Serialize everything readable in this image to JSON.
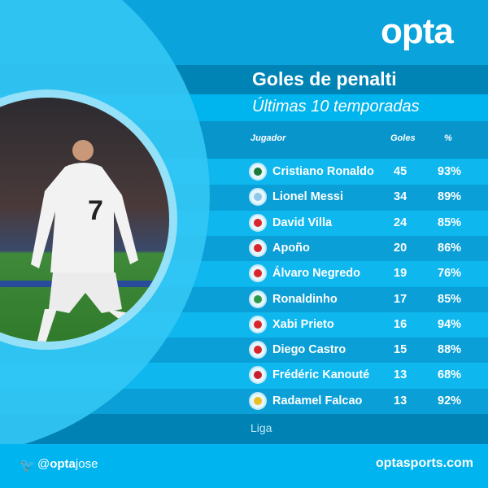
{
  "brand": {
    "logo": "opta",
    "handle_prefix": "@",
    "handle_brand": "opta",
    "handle_name": "jose",
    "site": "optasports.com",
    "twitter_icon": "twitter-bird-icon"
  },
  "title": "Goles de penalti",
  "subtitle": "Últimas 10 temporadas",
  "table": {
    "headers": {
      "player": "Jugador",
      "goals": "Goles",
      "pct": "%"
    },
    "rows": [
      {
        "flag": "portugal",
        "player": "Cristiano Ronaldo",
        "goals": "45",
        "pct": "93%"
      },
      {
        "flag": "argentina",
        "player": "Lionel Messi",
        "goals": "34",
        "pct": "89%"
      },
      {
        "flag": "spain",
        "player": "David Villa",
        "goals": "24",
        "pct": "85%"
      },
      {
        "flag": "spain",
        "player": "Apoño",
        "goals": "20",
        "pct": "86%"
      },
      {
        "flag": "spain",
        "player": "Álvaro Negredo",
        "goals": "19",
        "pct": "76%"
      },
      {
        "flag": "brazil",
        "player": "Ronaldinho",
        "goals": "17",
        "pct": "85%"
      },
      {
        "flag": "spain",
        "player": "Xabi Prieto",
        "goals": "16",
        "pct": "94%"
      },
      {
        "flag": "spain",
        "player": "Diego Castro",
        "goals": "15",
        "pct": "88%"
      },
      {
        "flag": "mali",
        "player": "Frédéric Kanouté",
        "goals": "13",
        "pct": "68%"
      },
      {
        "flag": "colombia",
        "player": "Radamel Falcao",
        "goals": "13",
        "pct": "92%"
      }
    ]
  },
  "footer_note": "Liga",
  "colors": {
    "portugal": "#1a7a3a",
    "argentina": "#8fc8e8",
    "spain": "#d8262c",
    "brazil": "#2a9a48",
    "mali": "#c8202a",
    "colombia": "#e8c020"
  }
}
